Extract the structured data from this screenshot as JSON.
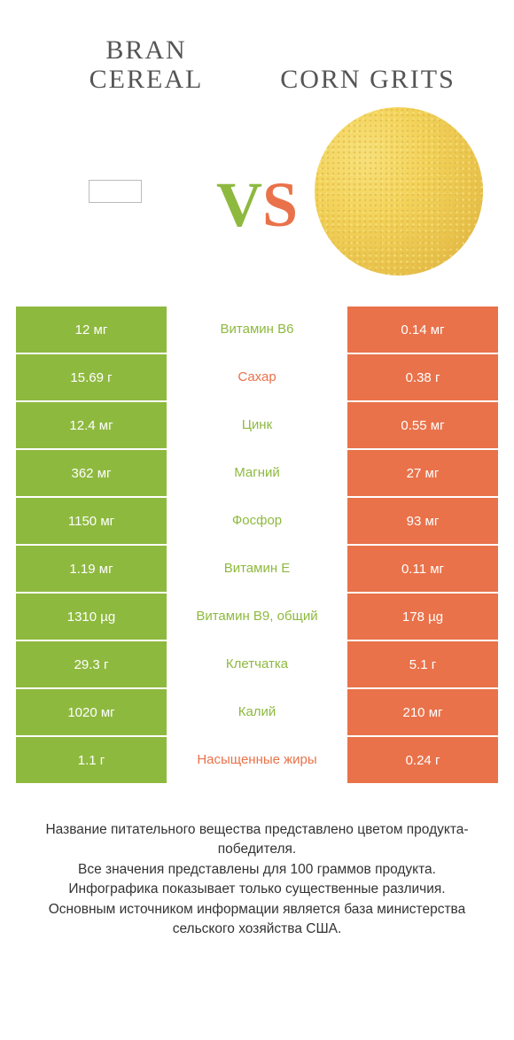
{
  "colors": {
    "green": "#8eb93f",
    "orange": "#e9724a",
    "mid_green_text": "#8eb93f",
    "mid_orange_text": "#e9724a"
  },
  "header": {
    "left_title_line1": "BRAN",
    "left_title_line2": "CEREAL",
    "right_title": "CORN GRITS"
  },
  "vs": {
    "v": "V",
    "s": "S"
  },
  "rows": [
    {
      "left": "12 мг",
      "mid": "Витамин B6",
      "right": "0.14 мг",
      "winner": "left"
    },
    {
      "left": "15.69 г",
      "mid": "Сахар",
      "right": "0.38 г",
      "winner": "right"
    },
    {
      "left": "12.4 мг",
      "mid": "Цинк",
      "right": "0.55 мг",
      "winner": "left"
    },
    {
      "left": "362 мг",
      "mid": "Магний",
      "right": "27 мг",
      "winner": "left"
    },
    {
      "left": "1150 мг",
      "mid": "Фосфор",
      "right": "93 мг",
      "winner": "left"
    },
    {
      "left": "1.19 мг",
      "mid": "Витамин E",
      "right": "0.11 мг",
      "winner": "left"
    },
    {
      "left": "1310 µg",
      "mid": "Витамин B9, общий",
      "right": "178 µg",
      "winner": "left"
    },
    {
      "left": "29.3 г",
      "mid": "Клетчатка",
      "right": "5.1 г",
      "winner": "left"
    },
    {
      "left": "1020 мг",
      "mid": "Калий",
      "right": "210 мг",
      "winner": "left"
    },
    {
      "left": "1.1 г",
      "mid": "Насыщенные жиры",
      "right": "0.24 г",
      "winner": "right"
    }
  ],
  "footer": {
    "line1": "Название питательного вещества представлено цветом продукта-победителя.",
    "line2": "Все значения представлены для 100 граммов продукта.",
    "line3": "Инфографика показывает только существенные различия.",
    "line4": "Основным источником информации является база министерства сельского хозяйства США."
  }
}
